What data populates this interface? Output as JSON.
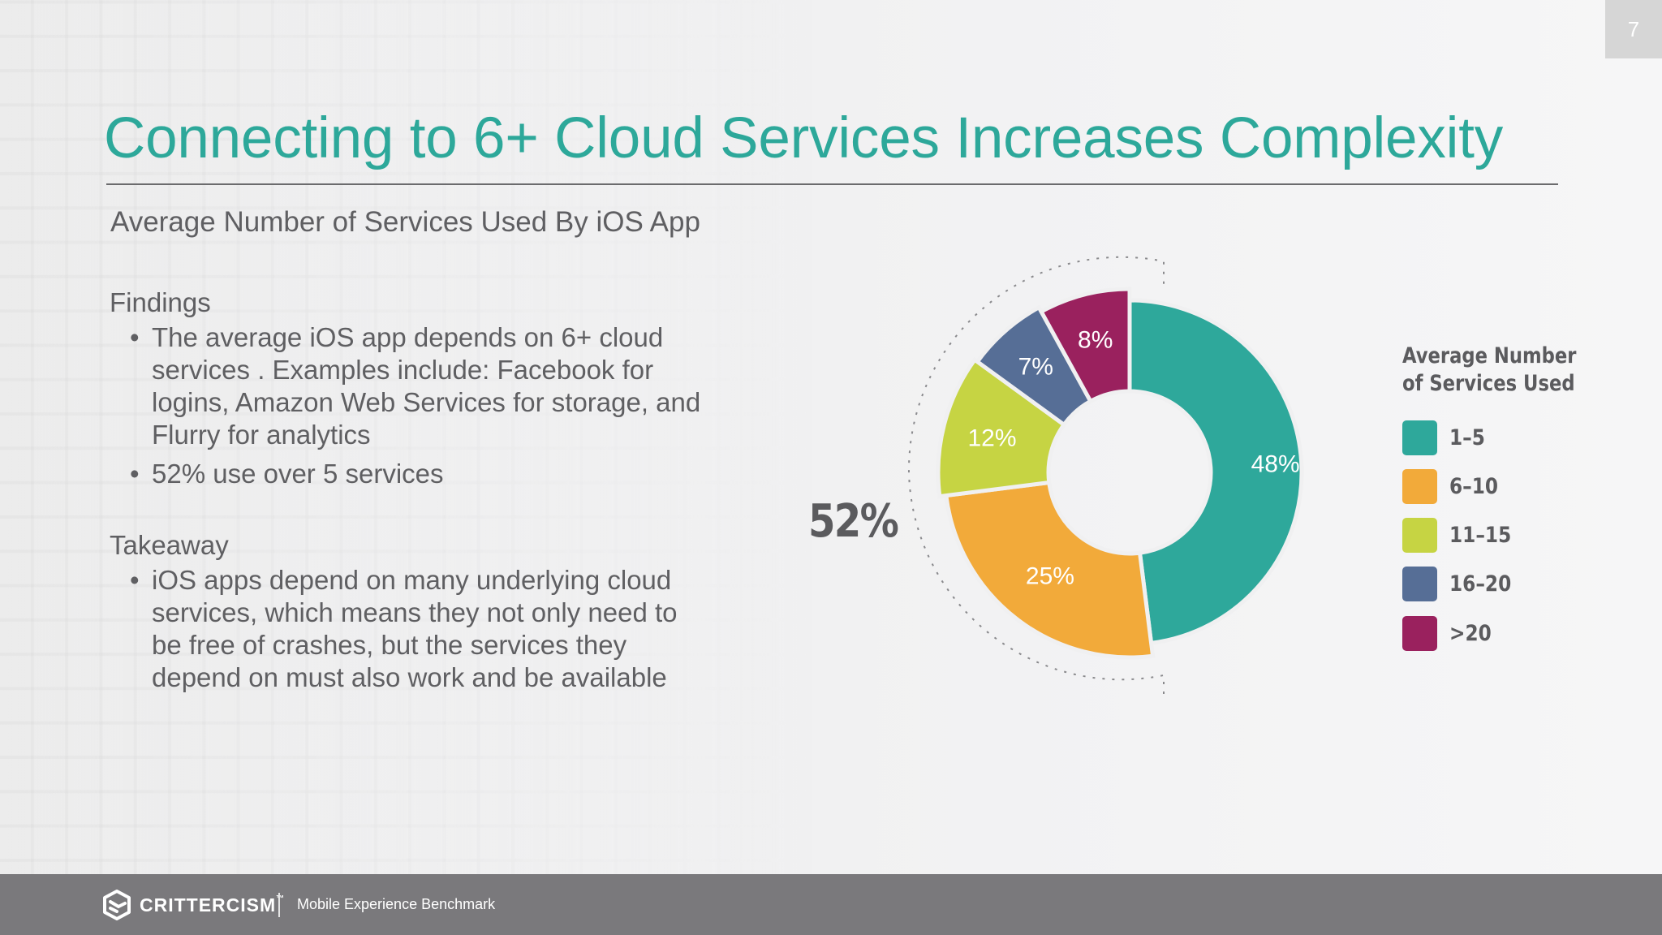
{
  "slide": {
    "page_number": "7",
    "title": "Connecting to 6+ Cloud Services Increases Complexity",
    "subtitle": "Average Number of Services Used By iOS App"
  },
  "findings": {
    "heading": "Findings",
    "bullets": [
      {
        "lines": [
          "The average iOS app depends on 6+ cloud",
          "services . Examples include: Facebook for",
          "logins, Amazon Web Services for storage, and",
          "Flurry for analytics"
        ]
      },
      {
        "lines": [
          "52% use over 5 services"
        ]
      }
    ]
  },
  "takeaway": {
    "heading": "Takeaway",
    "bullets": [
      {
        "lines": [
          "iOS apps depend on many underlying cloud",
          "services, which means they not only need to",
          "be free of crashes, but the services they",
          "depend on must also work and be available"
        ]
      }
    ]
  },
  "callout": {
    "value": "52%"
  },
  "legend": {
    "title_lines": [
      "Average Number",
      "of Services Used"
    ],
    "items": [
      {
        "label": "1–5",
        "color": "#2ea89b"
      },
      {
        "label": "6–10",
        "color": "#f2aa3a"
      },
      {
        "label": "11–15",
        "color": "#c6d443"
      },
      {
        "label": "16–20",
        "color": "#566e96"
      },
      {
        "label": ">20",
        "color": "#9a215e"
      }
    ]
  },
  "footer": {
    "brand": "CRITTERCISM",
    "trademark": "™",
    "tagline": "Mobile Experience Benchmark"
  },
  "colors": {
    "title": "#2da89a",
    "text": "#5f5f62",
    "footer_bg": "#7a797c"
  },
  "chart_data": {
    "type": "pie",
    "subtype": "donut",
    "title": "Average Number of Services Used By iOS App",
    "legend_title": "Average Number of Services Used",
    "legend_position": "right",
    "categories": [
      "1–5",
      "6–10",
      "11–15",
      "16–20",
      ">20"
    ],
    "values": [
      48,
      25,
      12,
      7,
      8
    ],
    "labels": [
      "48%",
      "25%",
      "12%",
      "7%",
      "8%"
    ],
    "colors": [
      "#2ea89b",
      "#f2aa3a",
      "#c6d443",
      "#566e96",
      "#9a215e"
    ],
    "annotations": [
      {
        "text": "52%",
        "description": "Bracketed total of 6–10, 11–15, 16–20 and >20 slices (over 5 services)"
      }
    ]
  }
}
